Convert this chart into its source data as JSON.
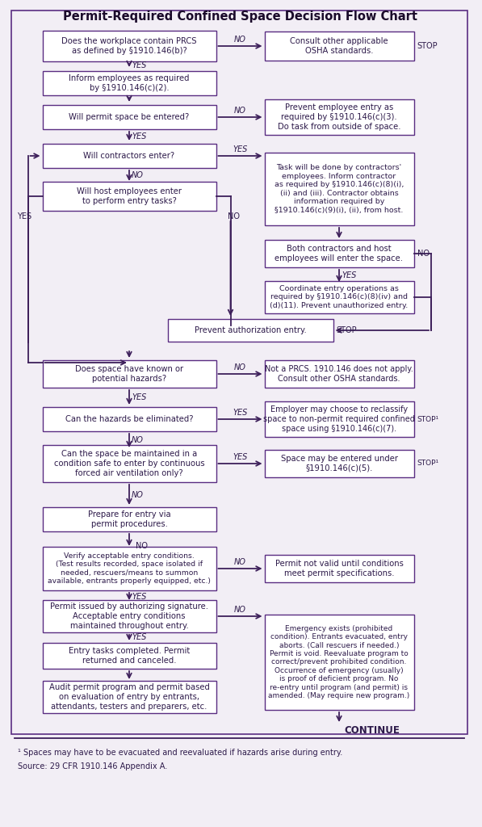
{
  "title": "Permit-Required Confined Space Decision Flow Chart",
  "bg_color": "#f2eef5",
  "box_border_color": "#5a2d82",
  "box_fill_color": "#ffffff",
  "text_color": "#2d1a4a",
  "arrow_color": "#3d1f5a",
  "title_color": "#1a0a2a",
  "footnote1": "¹ Spaces may have to be evacuated and reevaluated if hazards arise during entry.",
  "footnote2": "Source: 29 CFR 1910.146 Appendix A.",
  "stop_superscript": "¹"
}
